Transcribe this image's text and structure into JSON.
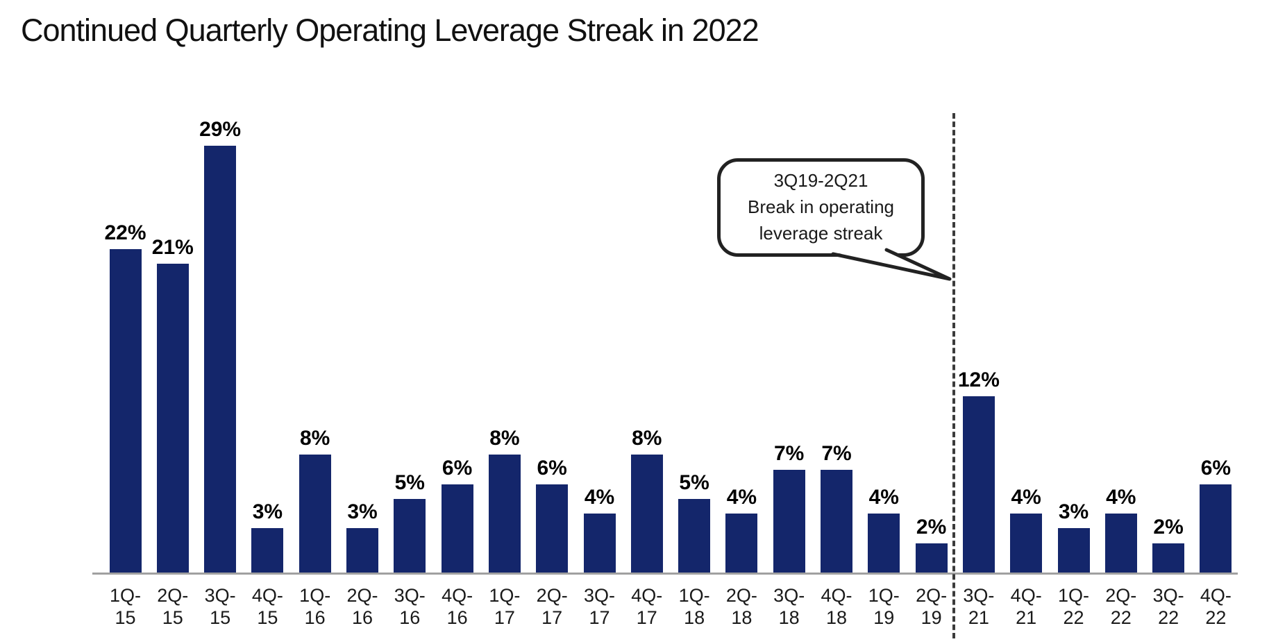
{
  "header": {
    "title": "Continued Quarterly Operating Leverage Streak in 2022"
  },
  "annotation": {
    "lines": [
      "3Q19-2Q21",
      "Break in operating",
      "leverage streak"
    ]
  },
  "colors": {
    "bar": "#14266B",
    "axis_line": "#a0a0a0",
    "divider": "#3b3b3b",
    "label_text": "#000000"
  },
  "chart_data": {
    "type": "bar",
    "title": "Continued Quarterly Operating Leverage Streak in 2022",
    "categories": [
      "1Q-15",
      "2Q-15",
      "3Q-15",
      "4Q-15",
      "1Q-16",
      "2Q-16",
      "3Q-16",
      "4Q-16",
      "1Q-17",
      "2Q-17",
      "3Q-17",
      "4Q-17",
      "1Q-18",
      "2Q-18",
      "3Q-18",
      "4Q-18",
      "1Q-19",
      "2Q-19",
      "3Q-21",
      "4Q-21",
      "1Q-22",
      "2Q-22",
      "3Q-22",
      "4Q-22"
    ],
    "values": [
      22,
      21,
      29,
      3,
      8,
      3,
      5,
      6,
      8,
      6,
      4,
      8,
      5,
      4,
      7,
      7,
      4,
      2,
      12,
      4,
      3,
      4,
      2,
      6
    ],
    "unit": "%",
    "xlabel": "",
    "ylabel": "",
    "ylim": [
      0,
      30
    ],
    "grid": false,
    "legend": "none",
    "data_labels": "above bars, bold",
    "bar_color": "#14266B",
    "divider_after_category": "2Q-19",
    "annotation": "3Q19-2Q21 Break in operating leverage streak"
  }
}
